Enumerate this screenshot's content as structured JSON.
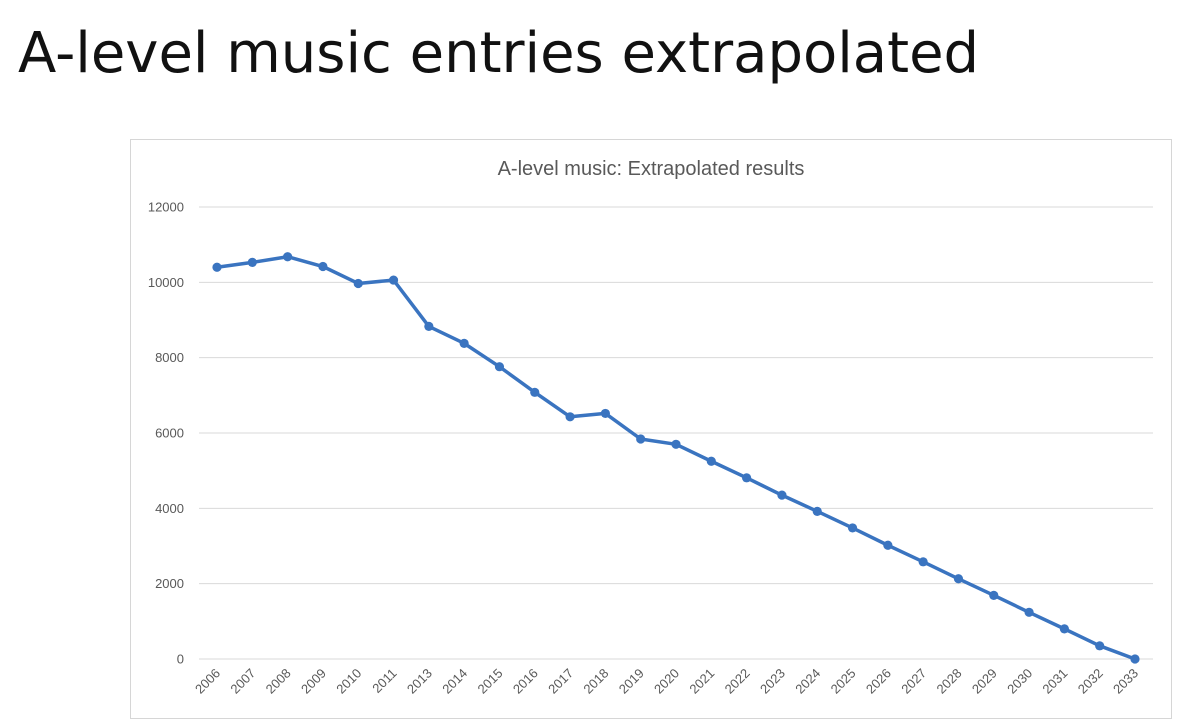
{
  "slide": {
    "title": "A-level music entries extrapolated"
  },
  "colors": {
    "series": "#3a74c0",
    "grid": "#d9d9d9",
    "axis_text": "#595959"
  },
  "chart_data": {
    "type": "line",
    "title": "A-level music: Extrapolated results",
    "xlabel": "",
    "ylabel": "",
    "ylim": [
      0,
      12000
    ],
    "yticks": [
      0,
      2000,
      4000,
      6000,
      8000,
      10000,
      12000
    ],
    "grid": true,
    "legend": "none",
    "categories": [
      "2006",
      "2007",
      "2008",
      "2009",
      "2010",
      "2011",
      "2013",
      "2014",
      "2015",
      "2016",
      "2017",
      "2018",
      "2019",
      "2020",
      "2021",
      "2022",
      "2023",
      "2024",
      "2025",
      "2026",
      "2027",
      "2028",
      "2029",
      "2030",
      "2031",
      "2032",
      "2033"
    ],
    "series": [
      {
        "values": [
          10400,
          10530,
          10680,
          10420,
          9970,
          10060,
          8830,
          8380,
          7760,
          7080,
          6430,
          6520,
          5840,
          5700,
          5250,
          4810,
          4350,
          3920,
          3480,
          3020,
          2580,
          2130,
          1690,
          1240,
          800,
          350,
          0
        ]
      }
    ]
  }
}
